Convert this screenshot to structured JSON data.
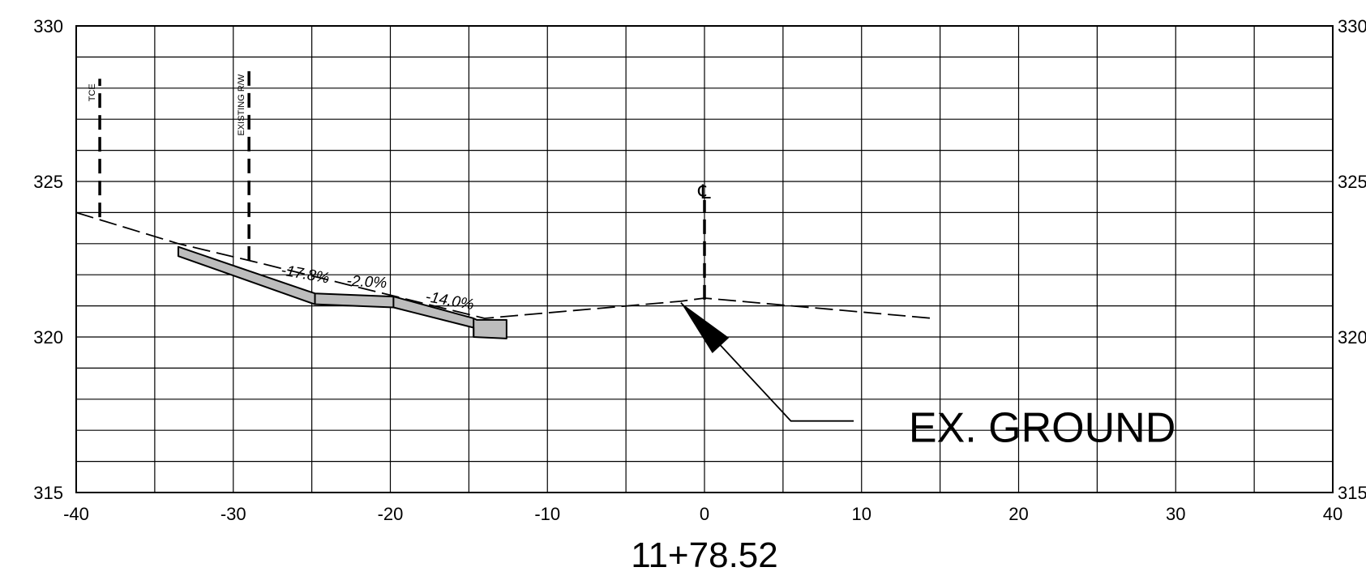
{
  "chart_data": {
    "type": "cross-section",
    "station_label": "11+78.52",
    "x_axis": {
      "min": -40,
      "max": 40,
      "ticks": [
        -40,
        -30,
        -20,
        -10,
        0,
        10,
        20,
        30,
        40
      ],
      "grid_step": 5
    },
    "y_axis": {
      "min": 315,
      "max": 330,
      "ticks": [
        315,
        320,
        325,
        330
      ],
      "grid_step": 1
    },
    "right_tick_labels": [
      "315",
      "320",
      "325",
      "330"
    ],
    "existing_ground": {
      "label": "EX. GROUND",
      "points": [
        [
          -40,
          324.0
        ],
        [
          -33.5,
          323.0
        ],
        [
          -28.5,
          322.4
        ],
        [
          -14,
          320.6
        ],
        [
          -1.5,
          321.15
        ],
        [
          0,
          321.25
        ],
        [
          14.5,
          320.6
        ]
      ]
    },
    "proposed_section": {
      "top": [
        [
          -33.5,
          322.9
        ],
        [
          -24.8,
          321.4
        ],
        [
          -19.8,
          321.3
        ],
        [
          -14.7,
          320.6
        ],
        [
          -14.5,
          320.55
        ],
        [
          -12.6,
          320.55
        ]
      ],
      "bottom": [
        [
          -12.6,
          319.95
        ],
        [
          -14.7,
          320.0
        ],
        [
          -14.7,
          320.3
        ],
        [
          -19.8,
          320.95
        ],
        [
          -24.8,
          321.05
        ],
        [
          -33.5,
          322.6
        ]
      ]
    },
    "slope_labels": [
      {
        "text": "-17.8%",
        "x": -27,
        "y": 322.0,
        "angle": 10
      },
      {
        "text": "-2.0%",
        "x": -22.8,
        "y": 321.65,
        "angle": 3
      },
      {
        "text": "-14.0%",
        "x": -17.8,
        "y": 321.15,
        "angle": 10
      }
    ],
    "vertical_markers": [
      {
        "label": "TCE",
        "x": -38.5,
        "y_from": 323.85,
        "y_to": 328.3
      },
      {
        "label": "EXISTING R/W",
        "x": -29.0,
        "y_from": 322.45,
        "y_to": 328.6
      },
      {
        "label": "℄",
        "x": 0.0,
        "y_from": 321.2,
        "y_to": 324.4
      }
    ],
    "callout": {
      "arrow_tip": [
        -1.5,
        321.1
      ],
      "elbow": [
        5.5,
        317.3
      ],
      "end": [
        9.5,
        317.3
      ],
      "text_anchor": [
        13,
        317.1
      ]
    }
  }
}
